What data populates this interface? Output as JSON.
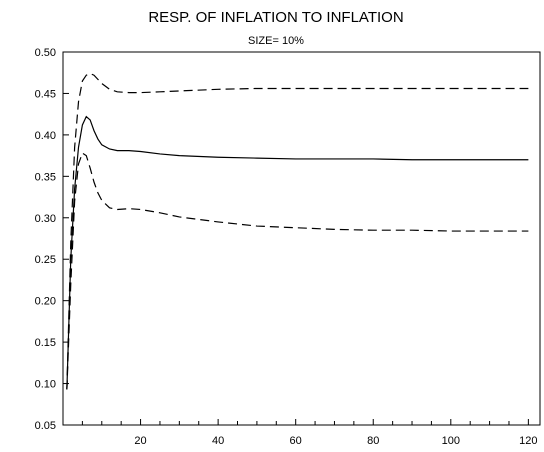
{
  "chart_data": {
    "type": "line",
    "title": "RESP. OF INFLATION TO  INFLATION",
    "subtitle": "SIZE=  10%",
    "xlabel": "",
    "ylabel": "",
    "xlim": [
      0,
      123
    ],
    "ylim": [
      0.05,
      0.5
    ],
    "x_ticks": [
      20,
      40,
      60,
      80,
      100,
      120
    ],
    "x_tick_labels": [
      "20",
      "40",
      "60",
      "80",
      "100",
      "120"
    ],
    "y_ticks": [
      0.05,
      0.1,
      0.15,
      0.2,
      0.25,
      0.3,
      0.35,
      0.4,
      0.45,
      0.5
    ],
    "y_tick_labels": [
      "0.05",
      "0.10",
      "0.15",
      "0.20",
      "0.25",
      "0.30",
      "0.35",
      "0.40",
      "0.45",
      "0.50"
    ],
    "grid": false,
    "series": [
      {
        "style": "solid",
        "x": [
          1,
          2,
          3,
          4,
          5,
          6,
          7,
          8,
          9,
          10,
          12,
          14,
          17,
          20,
          25,
          30,
          40,
          50,
          60,
          70,
          80,
          90,
          100,
          110,
          120
        ],
        "y": [
          0.093,
          0.25,
          0.335,
          0.385,
          0.412,
          0.422,
          0.418,
          0.405,
          0.395,
          0.388,
          0.383,
          0.381,
          0.381,
          0.38,
          0.377,
          0.375,
          0.373,
          0.372,
          0.371,
          0.371,
          0.371,
          0.37,
          0.37,
          0.37,
          0.37
        ]
      },
      {
        "style": "dashed",
        "x": [
          1,
          2,
          3,
          4,
          5,
          6,
          7,
          8,
          9,
          10,
          12,
          14,
          17,
          20,
          25,
          30,
          40,
          50,
          60,
          70,
          80,
          90,
          100,
          110,
          120
        ],
        "y": [
          0.093,
          0.27,
          0.385,
          0.44,
          0.465,
          0.472,
          0.474,
          0.472,
          0.467,
          0.462,
          0.455,
          0.452,
          0.451,
          0.451,
          0.452,
          0.453,
          0.455,
          0.456,
          0.456,
          0.456,
          0.456,
          0.456,
          0.456,
          0.456,
          0.456
        ]
      },
      {
        "style": "dashed",
        "x": [
          1,
          2,
          3,
          4,
          5,
          6,
          7,
          8,
          9,
          10,
          12,
          14,
          17,
          20,
          25,
          30,
          40,
          50,
          60,
          70,
          80,
          90,
          100,
          110,
          120
        ],
        "y": [
          0.093,
          0.22,
          0.32,
          0.365,
          0.378,
          0.375,
          0.36,
          0.343,
          0.33,
          0.321,
          0.312,
          0.31,
          0.311,
          0.31,
          0.306,
          0.301,
          0.295,
          0.29,
          0.288,
          0.286,
          0.285,
          0.285,
          0.284,
          0.284,
          0.284
        ]
      }
    ]
  }
}
